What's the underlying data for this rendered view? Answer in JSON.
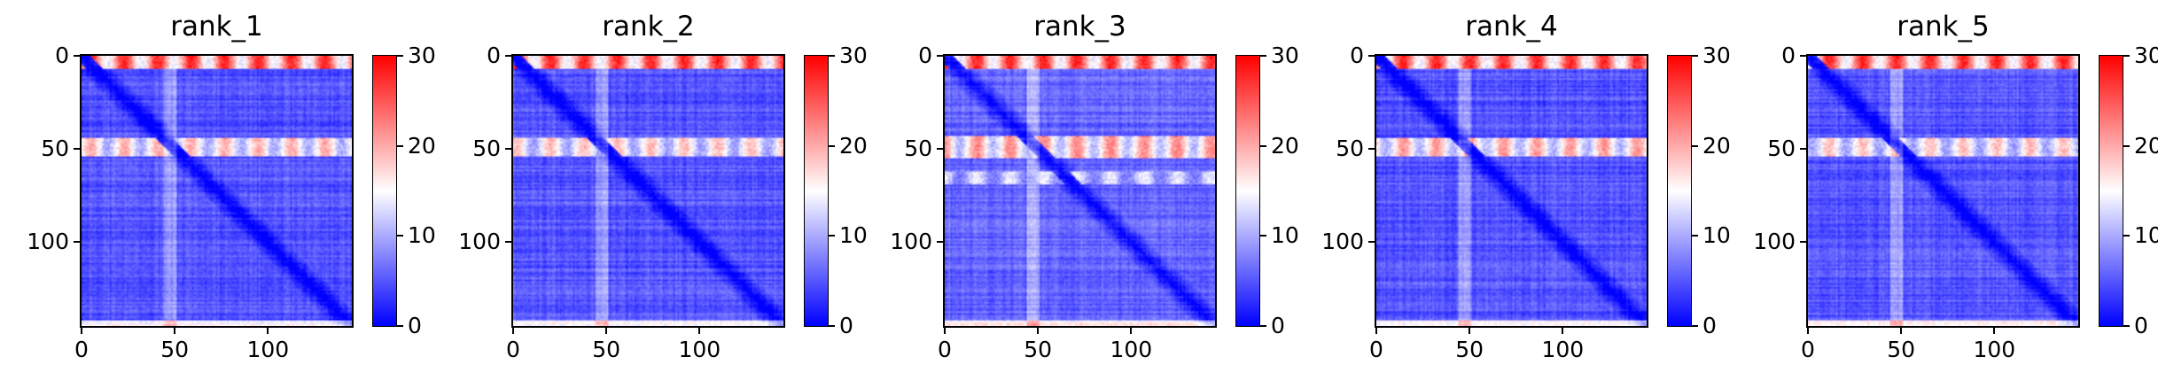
{
  "chart_data": [
    {
      "type": "heatmap",
      "title": "rank_1",
      "xlabel": "",
      "ylabel": "",
      "matrix_size": 145,
      "xlim": [
        0,
        145
      ],
      "ylim": [
        145,
        0
      ],
      "x_ticks": [
        0,
        50,
        100
      ],
      "y_ticks": [
        0,
        50,
        100
      ],
      "colorbar": {
        "range": [
          0,
          30
        ],
        "ticks": [
          0,
          10,
          20,
          30
        ],
        "colormap": [
          "#0000ff",
          "#ffffff",
          "#ff0000"
        ]
      },
      "high_error_bands": [
        {
          "axis": "row",
          "from": 0,
          "to": 6,
          "level": 28
        },
        {
          "axis": "row",
          "from": 44,
          "to": 53,
          "level": 20
        }
      ],
      "baseline_level": 5
    },
    {
      "type": "heatmap",
      "title": "rank_2",
      "xlabel": "",
      "ylabel": "",
      "matrix_size": 145,
      "xlim": [
        0,
        145
      ],
      "ylim": [
        145,
        0
      ],
      "x_ticks": [
        0,
        50,
        100
      ],
      "y_ticks": [
        0,
        50,
        100
      ],
      "colorbar": {
        "range": [
          0,
          30
        ],
        "ticks": [
          0,
          10,
          20,
          30
        ],
        "colormap": [
          "#0000ff",
          "#ffffff",
          "#ff0000"
        ]
      },
      "high_error_bands": [
        {
          "axis": "row",
          "from": 0,
          "to": 6,
          "level": 28
        },
        {
          "axis": "row",
          "from": 44,
          "to": 53,
          "level": 19
        }
      ],
      "baseline_level": 5
    },
    {
      "type": "heatmap",
      "title": "rank_3",
      "xlabel": "",
      "ylabel": "",
      "matrix_size": 145,
      "xlim": [
        0,
        145
      ],
      "ylim": [
        145,
        0
      ],
      "x_ticks": [
        0,
        50,
        100
      ],
      "y_ticks": [
        0,
        50,
        100
      ],
      "colorbar": {
        "range": [
          0,
          30
        ],
        "ticks": [
          0,
          10,
          20,
          30
        ],
        "colormap": [
          "#0000ff",
          "#ffffff",
          "#ff0000"
        ]
      },
      "high_error_bands": [
        {
          "axis": "row",
          "from": 0,
          "to": 6,
          "level": 28
        },
        {
          "axis": "row",
          "from": 43,
          "to": 54,
          "level": 22
        },
        {
          "axis": "row",
          "from": 62,
          "to": 68,
          "level": 14
        }
      ],
      "baseline_level": 6
    },
    {
      "type": "heatmap",
      "title": "rank_4",
      "xlabel": "",
      "ylabel": "",
      "matrix_size": 145,
      "xlim": [
        0,
        145
      ],
      "ylim": [
        145,
        0
      ],
      "x_ticks": [
        0,
        50,
        100
      ],
      "y_ticks": [
        0,
        50,
        100
      ],
      "colorbar": {
        "range": [
          0,
          30
        ],
        "ticks": [
          0,
          10,
          20,
          30
        ],
        "colormap": [
          "#0000ff",
          "#ffffff",
          "#ff0000"
        ]
      },
      "high_error_bands": [
        {
          "axis": "row",
          "from": 0,
          "to": 6,
          "level": 28
        },
        {
          "axis": "row",
          "from": 44,
          "to": 53,
          "level": 21
        }
      ],
      "baseline_level": 5
    },
    {
      "type": "heatmap",
      "title": "rank_5",
      "xlabel": "",
      "ylabel": "",
      "matrix_size": 145,
      "xlim": [
        0,
        145
      ],
      "ylim": [
        145,
        0
      ],
      "x_ticks": [
        0,
        50,
        100
      ],
      "y_ticks": [
        0,
        50,
        100
      ],
      "colorbar": {
        "range": [
          0,
          30
        ],
        "ticks": [
          0,
          10,
          20,
          30
        ],
        "colormap": [
          "#0000ff",
          "#ffffff",
          "#ff0000"
        ]
      },
      "high_error_bands": [
        {
          "axis": "row",
          "from": 0,
          "to": 6,
          "level": 28
        },
        {
          "axis": "row",
          "from": 44,
          "to": 53,
          "level": 19
        }
      ],
      "baseline_level": 5
    }
  ]
}
